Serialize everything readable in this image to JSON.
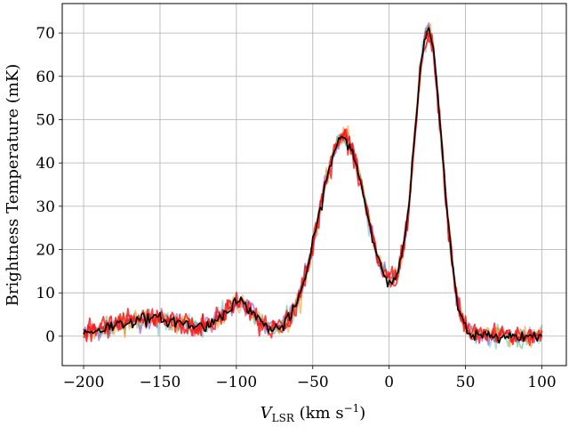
{
  "chart_data": {
    "type": "line",
    "xlabel": {
      "main": "V",
      "sub": "LSR",
      "unit": " (km s",
      "sup": "−1",
      "close": ")"
    },
    "ylabel": "Brightness Temperature (mK)",
    "xlim": [
      -214,
      116
    ],
    "ylim": [
      -6.8,
      76.8
    ],
    "xticks": [
      -200,
      -150,
      -100,
      -50,
      0,
      50,
      100
    ],
    "xtick_labels": [
      "−200",
      "−150",
      "−100",
      "−50",
      "0",
      "50",
      "100"
    ],
    "yticks": [
      0,
      10,
      20,
      30,
      40,
      50,
      60,
      70
    ],
    "ytick_labels": [
      "0",
      "10",
      "20",
      "30",
      "40",
      "50",
      "60",
      "70"
    ],
    "grid": true,
    "x_range": [
      -200,
      100
    ],
    "x_step": 1,
    "components": [
      {
        "center": -155,
        "amplitude": 4.0,
        "fwhm": 60
      },
      {
        "center": -98,
        "amplitude": 7.5,
        "fwhm": 25
      },
      {
        "center": -30,
        "amplitude": 45.5,
        "fwhm": 38
      },
      {
        "center": 25.5,
        "amplitude": 70.0,
        "fwhm": 22
      },
      {
        "center": 3,
        "amplitude": 4.0,
        "fwhm": 15
      }
    ],
    "series": [
      {
        "color": "#8a2be2",
        "noise": 1.2,
        "opacity": 0.55
      },
      {
        "color": "#3cb4c8",
        "noise": 1.1,
        "opacity": 0.45
      },
      {
        "color": "#32a060",
        "noise": 1.1,
        "opacity": 0.45
      },
      {
        "color": "#ff8c00",
        "noise": 1.2,
        "opacity": 0.5
      },
      {
        "color": "#ff0000",
        "noise": 1.3,
        "opacity": 0.75
      },
      {
        "color": "#ff1010",
        "noise": 1.3,
        "opacity": 0.8
      },
      {
        "color": "#000000",
        "noise": 0.7,
        "opacity": 1.0
      }
    ]
  }
}
